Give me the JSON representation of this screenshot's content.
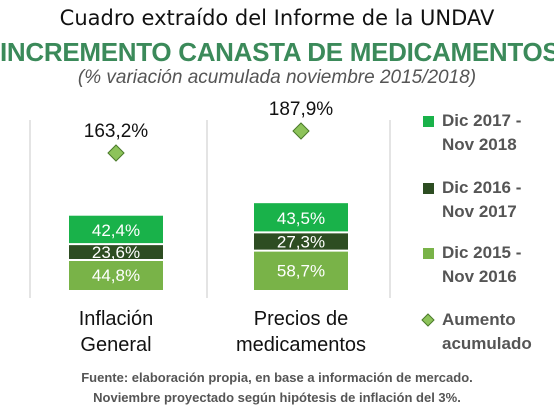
{
  "header": {
    "top_text": "Cuadro extraído del Informe de la UNDAV",
    "title": "INCREMENTO CANASTA DE MEDICAMENTOS",
    "subtitle": "(% variación acumulada noviembre 2015/2018)"
  },
  "source": {
    "line1": "Fuente: elaboración propia, en base a información de mercado.",
    "line2": "Noviembre proyectado según hipótesis de inflación del 3%."
  },
  "colors": {
    "dic2015": "#79b348",
    "dic2016": "#2d4d22",
    "dic2017": "#19b24a",
    "diamond": "#8dc35a",
    "legend_text": "#555555"
  },
  "chart_data": {
    "type": "bar",
    "stacked": true,
    "categories": [
      [
        "Inflación",
        "General"
      ],
      [
        "Precios de",
        "medicamentos"
      ]
    ],
    "series": [
      {
        "name": [
          "Dic 2015 -",
          "Nov 2016"
        ],
        "key": "dic2015",
        "values": [
          44.8,
          58.7
        ],
        "labels": [
          "44,8%",
          "58,7%"
        ]
      },
      {
        "name": [
          "Dic 2016 -",
          "Nov 2017"
        ],
        "key": "dic2016",
        "values": [
          23.6,
          27.3
        ],
        "labels": [
          "23,6%",
          "27,3%"
        ]
      },
      {
        "name": [
          "Dic 2017 -",
          "Nov 2018"
        ],
        "key": "dic2017",
        "values": [
          42.4,
          43.5
        ],
        "labels": [
          "42,4%",
          "43,5%"
        ]
      }
    ],
    "cumulative": {
      "name": [
        "Aumento",
        "acumulado"
      ],
      "values": [
        163.2,
        187.9
      ],
      "labels": [
        "163,2%",
        "187,9%"
      ]
    },
    "legend_position": "right",
    "grid": false
  }
}
